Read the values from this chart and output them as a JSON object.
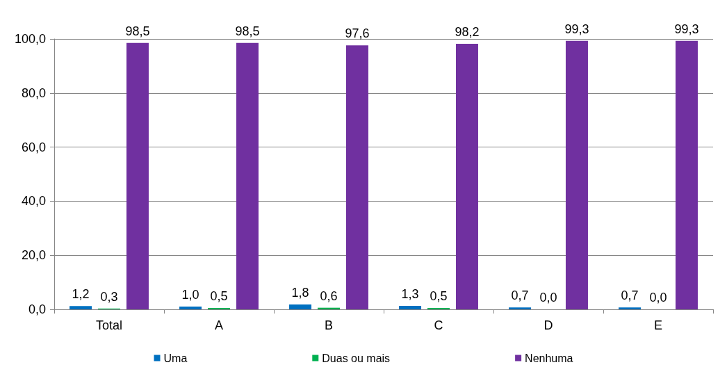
{
  "chart_data": {
    "type": "bar",
    "categories": [
      "Total",
      "A",
      "B",
      "C",
      "D",
      "E"
    ],
    "series": [
      {
        "name": "Uma",
        "color": "#0070c0",
        "values": [
          1.2,
          1.0,
          1.8,
          1.3,
          0.7,
          0.7
        ],
        "value_labels": [
          "1,2",
          "1,0",
          "1,8",
          "1,3",
          "0,7",
          "0,7"
        ]
      },
      {
        "name": "Duas ou mais",
        "color": "#00b050",
        "values": [
          0.3,
          0.5,
          0.6,
          0.5,
          0.0,
          0.0
        ],
        "value_labels": [
          "0,3",
          "0,5",
          "0,6",
          "0,5",
          "0,0",
          "0,0"
        ]
      },
      {
        "name": "Nenhuma",
        "color": "#7030a0",
        "values": [
          98.5,
          98.5,
          97.6,
          98.2,
          99.3,
          99.3
        ],
        "value_labels": [
          "98,5",
          "98,5",
          "97,6",
          "98,2",
          "99,3",
          "99,3"
        ]
      }
    ],
    "ylim": [
      0,
      100
    ],
    "yticks": [
      {
        "value": 0,
        "label": "0,0"
      },
      {
        "value": 20,
        "label": "20,0"
      },
      {
        "value": 40,
        "label": "40,0"
      },
      {
        "value": 60,
        "label": "60,0"
      },
      {
        "value": 80,
        "label": "80,0"
      },
      {
        "value": 100,
        "label": "100,0"
      }
    ],
    "grid": "y",
    "legend": "bottom"
  }
}
